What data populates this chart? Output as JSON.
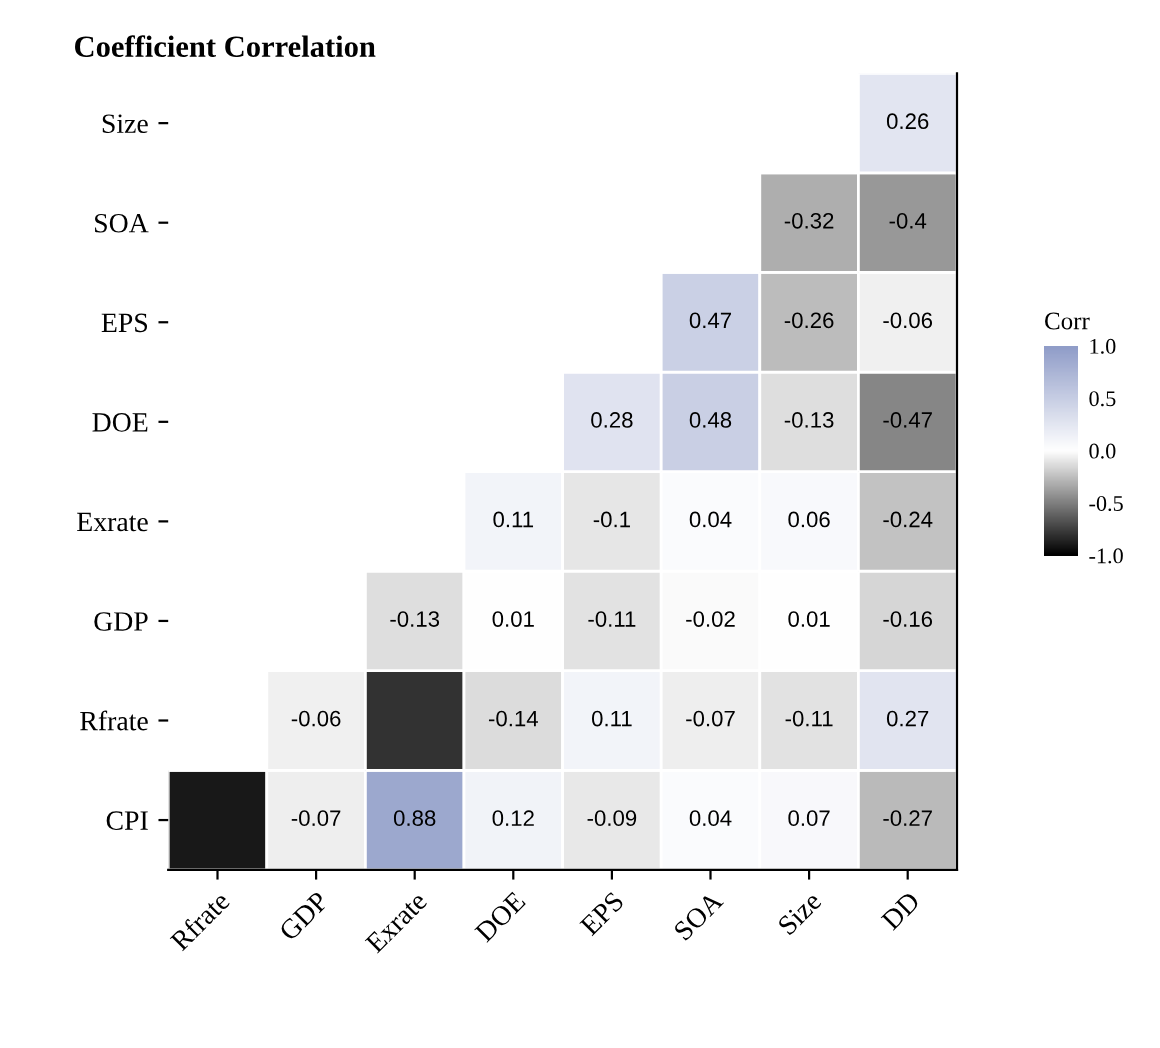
{
  "chart_data": {
    "type": "heatmap",
    "title": "Coefficient Correlation",
    "clabel": "Corr",
    "categories": [
      "Rfrate",
      "GDP",
      "Exrate",
      "DOE",
      "EPS",
      "SOA",
      "Size",
      "DD"
    ],
    "y_categories": [
      "Size",
      "SOA",
      "EPS",
      "DOE",
      "Exrate",
      "GDP",
      "Rfrate",
      "CPI"
    ],
    "cells": [
      [
        null,
        null,
        null,
        null,
        null,
        null,
        null,
        0.26
      ],
      [
        null,
        null,
        null,
        null,
        null,
        null,
        -0.32,
        -0.4
      ],
      [
        null,
        null,
        null,
        null,
        null,
        0.47,
        -0.26,
        -0.06
      ],
      [
        null,
        null,
        null,
        null,
        0.28,
        0.48,
        -0.13,
        -0.47
      ],
      [
        null,
        null,
        null,
        0.11,
        -0.1,
        0.04,
        0.06,
        -0.24
      ],
      [
        null,
        null,
        -0.13,
        0.01,
        -0.11,
        -0.02,
        0.01,
        -0.16
      ],
      [
        null,
        -0.06,
        -0.8,
        -0.14,
        0.11,
        -0.07,
        -0.11,
        0.27
      ],
      [
        -0.9,
        -0.07,
        0.88,
        0.12,
        -0.09,
        0.04,
        0.07,
        -0.27
      ]
    ],
    "cell_labels": [
      [
        null,
        null,
        null,
        null,
        null,
        null,
        null,
        "0.26"
      ],
      [
        null,
        null,
        null,
        null,
        null,
        null,
        "-0.32",
        "-0.4"
      ],
      [
        null,
        null,
        null,
        null,
        null,
        "0.47",
        "-0.26",
        "-0.06"
      ],
      [
        null,
        null,
        null,
        null,
        "0.28",
        "0.48",
        "-0.13",
        "-0.47"
      ],
      [
        null,
        null,
        null,
        "0.11",
        "-0.1",
        "0.04",
        "0.06",
        "-0.24"
      ],
      [
        null,
        null,
        "-0.13",
        "0.01",
        "-0.11",
        "-0.02",
        "0.01",
        "-0.16"
      ],
      [
        null,
        "-0.06",
        null,
        "-0.14",
        "0.11",
        "-0.07",
        "-0.11",
        "0.27"
      ],
      [
        null,
        "-0.07",
        "0.88",
        "0.12",
        "-0.09",
        "0.04",
        "0.07",
        "-0.27"
      ]
    ],
    "clim": [
      -1,
      1
    ],
    "cticks": [
      {
        "value": -1,
        "label": "-1.0"
      },
      {
        "value": -0.5,
        "label": "-0.5"
      },
      {
        "value": 0,
        "label": "0.0"
      },
      {
        "value": 0.5,
        "label": "0.5"
      },
      {
        "value": 1,
        "label": "1.0"
      }
    ],
    "grid": false,
    "legend": false
  }
}
